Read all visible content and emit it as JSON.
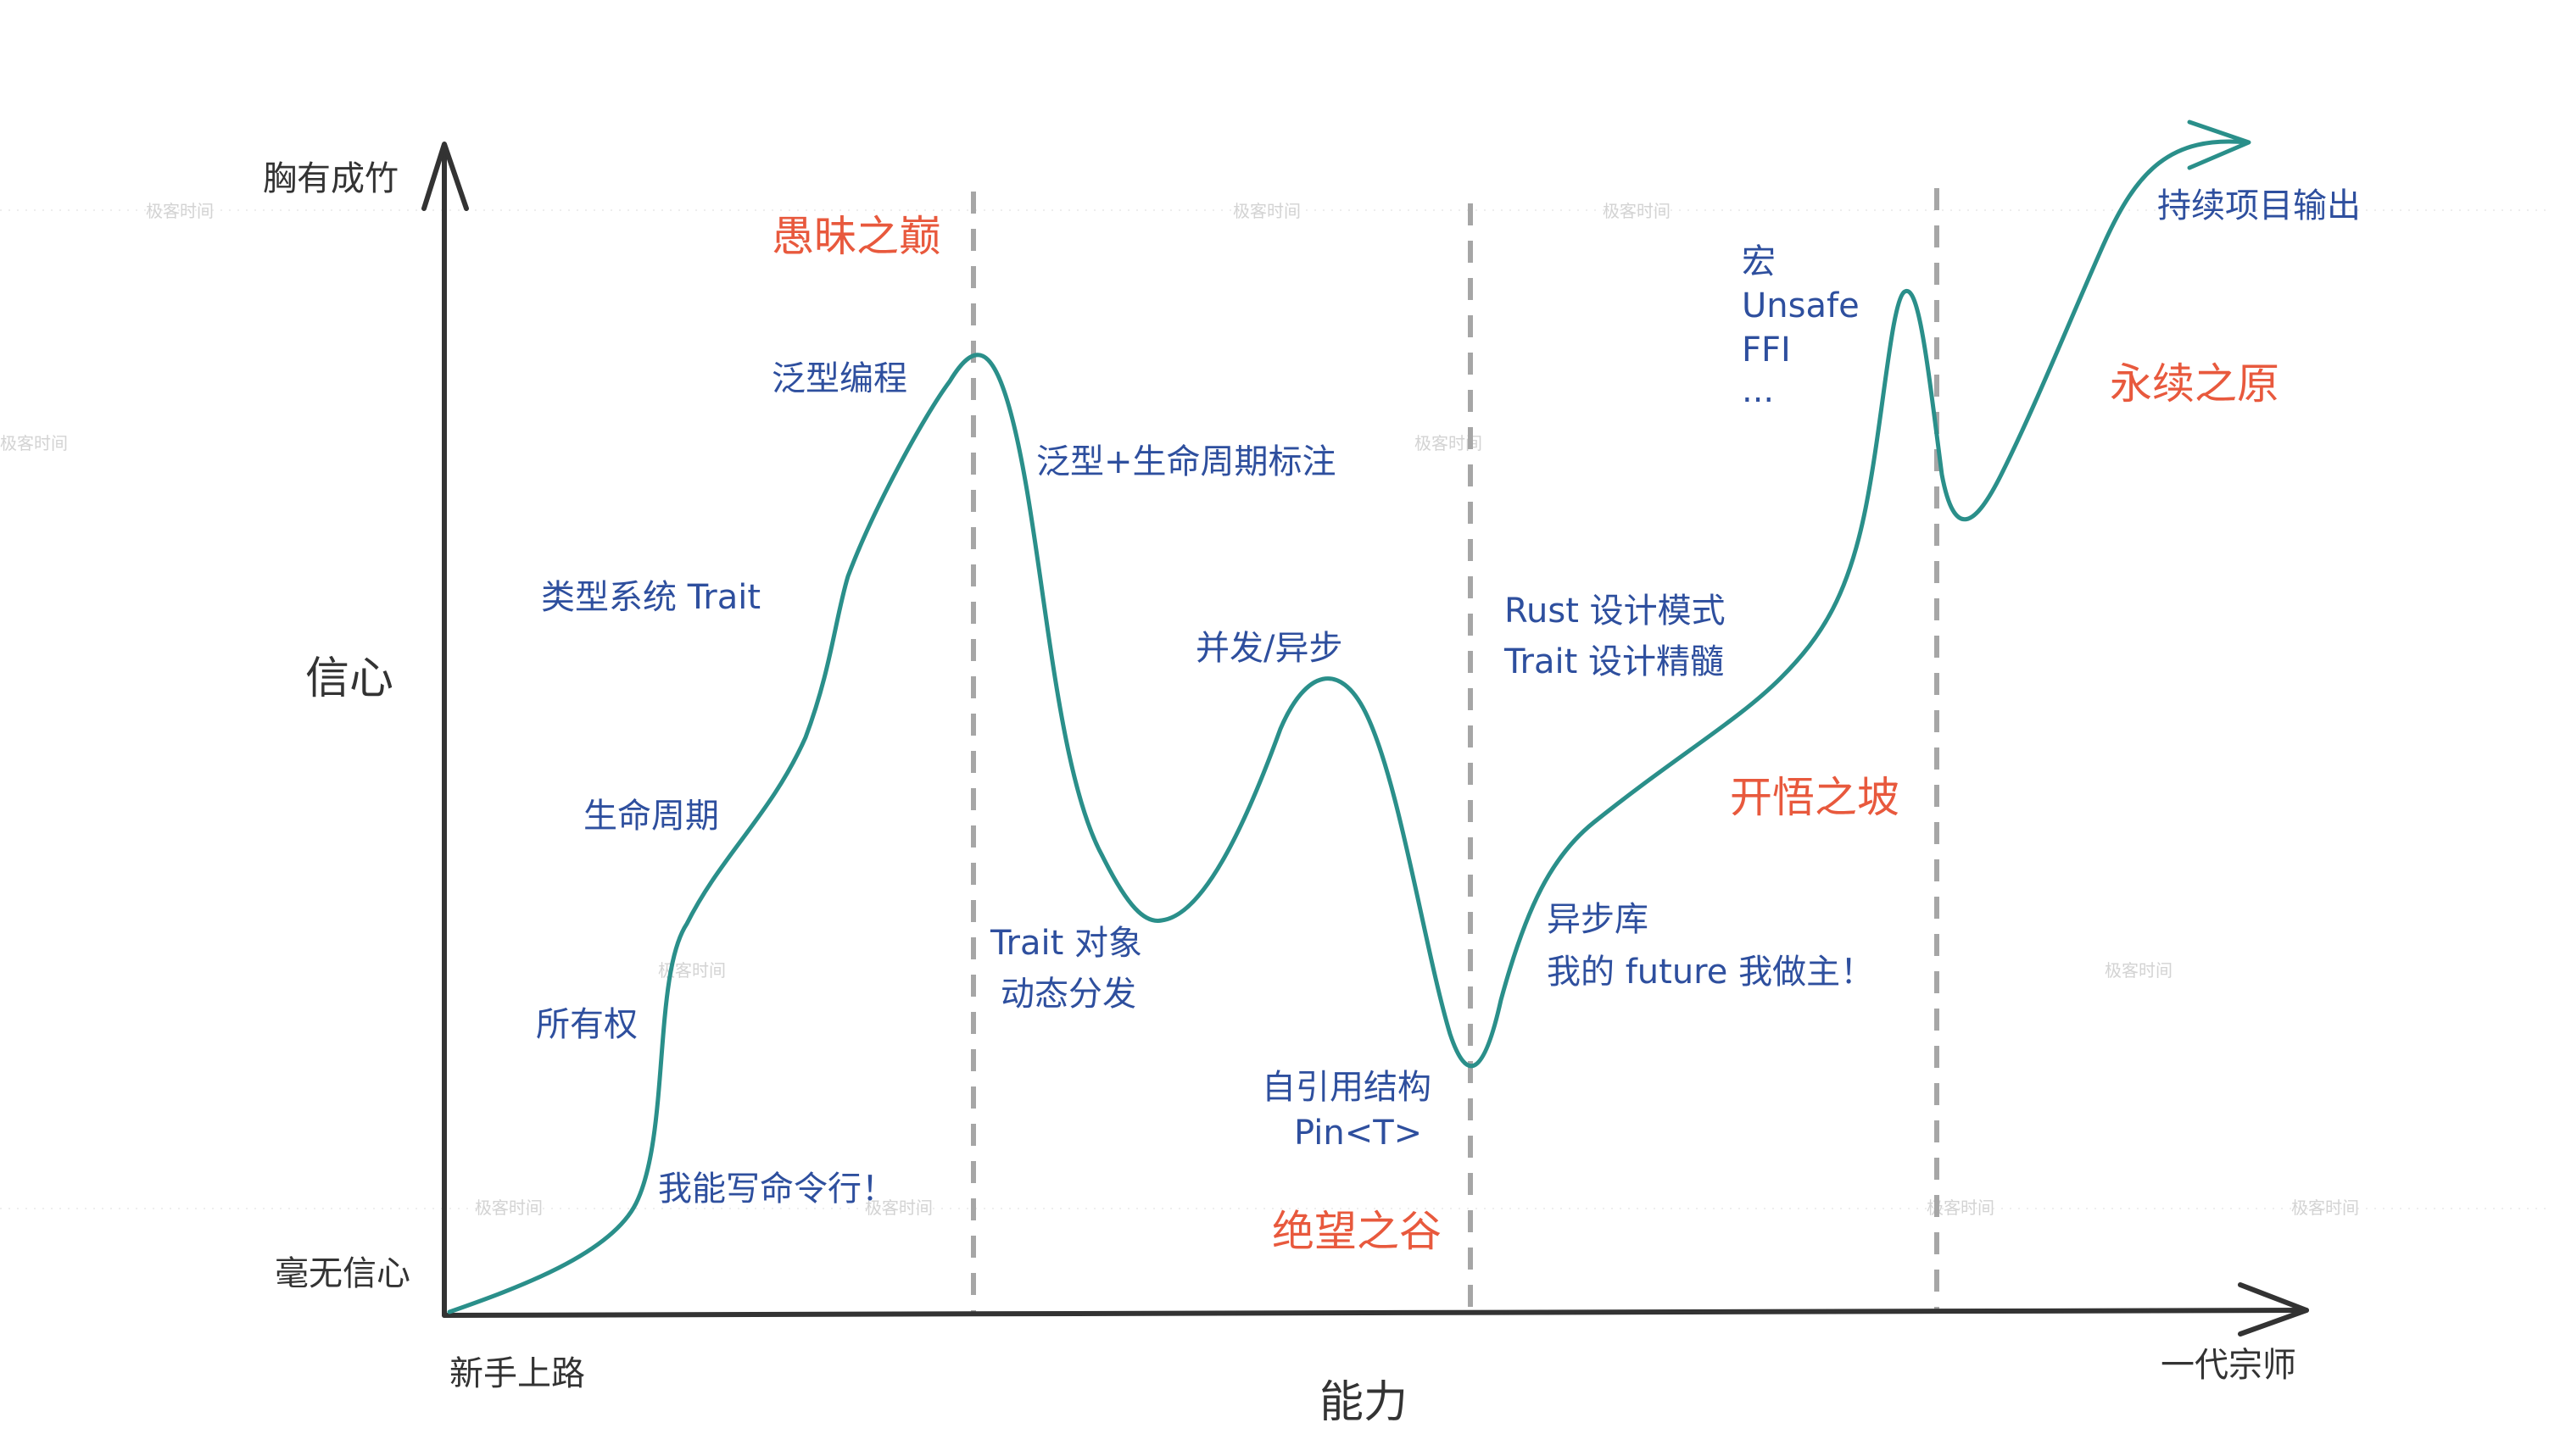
{
  "diagram": {
    "y_axis": {
      "title": "信心",
      "top_label": "胸有成竹",
      "bottom_label": "毫无信心"
    },
    "x_axis": {
      "title": "能力",
      "left_label": "新手上路",
      "right_label": "一代宗师"
    },
    "stages": [
      "愚昧之巅",
      "绝望之谷",
      "开悟之坡",
      "永续之原"
    ],
    "milestones": {
      "m1": "我能写命令行！",
      "m2": "所有权",
      "m3": "生命周期",
      "m4": "类型系统 Trait",
      "m5": "泛型编程",
      "m6": "泛型+生命周期标注",
      "m7a": "Trait 对象",
      "m7b": "动态分发",
      "m8": "并发/异步",
      "m9a": "自引用结构",
      "m9b": "Pin<T>",
      "m10a": "Rust 设计模式",
      "m10b": "Trait 设计精髓",
      "m11a": "异步库",
      "m11b": "我的 future 我做主！",
      "m12a": "宏",
      "m12b": "Unsafe",
      "m12c": "FFI",
      "m12d": "...",
      "m13": "持续项目输出"
    },
    "watermark": "极客时间",
    "colors": {
      "curve": "#2a8f8a",
      "milestone_text": "#2e4f9e",
      "stage_text": "#e8593d",
      "axis": "#333333",
      "divider": "#a6a6a6"
    }
  }
}
